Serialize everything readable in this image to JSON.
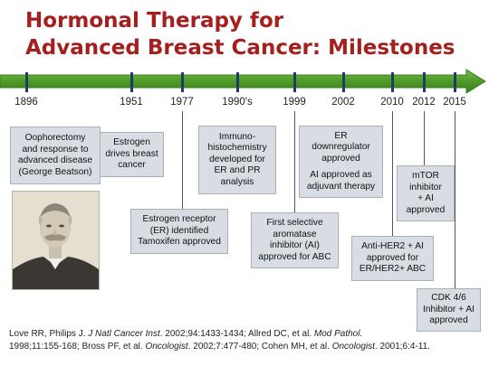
{
  "title": {
    "line1": "Hormonal Therapy for",
    "line2": "Advanced Breast Cancer: Milestones"
  },
  "years": [
    "1896",
    "1951",
    "1977",
    "1990's",
    "1999",
    "2002",
    "2010",
    "2012",
    "2015"
  ],
  "events": {
    "y1896": {
      "lines": [
        "Oophorectomy",
        "and response to",
        "advanced disease",
        "(George Beatson)"
      ]
    },
    "y1951": {
      "lines": [
        "Estrogen",
        "drives breast",
        "cancer"
      ]
    },
    "y1977": {
      "lines": [
        "Estrogen receptor",
        "(ER) identified",
        "Tamoxifen approved"
      ]
    },
    "y1990s": {
      "lines": [
        "Immuno-",
        "histochemistry",
        "developed for",
        "ER and PR",
        "analysis"
      ]
    },
    "y1999": {
      "lines": [
        "First selective",
        "aromatase",
        "inhibitor (AI)",
        "approved for ABC"
      ]
    },
    "y2002": {
      "lines": [
        "ER",
        "downregulator",
        "approved"
      ],
      "lines2": [
        "AI approved as",
        "adjuvant therapy"
      ]
    },
    "y2010": {
      "lines": [
        "Anti-HER2 + AI",
        "approved for",
        "ER/HER2+ ABC"
      ]
    },
    "y2012": {
      "lines": [
        "mTOR",
        "inhibitor",
        "+ AI",
        "approved"
      ]
    },
    "y2015": {
      "lines": [
        "CDK 4/6",
        "Inhibitor + AI",
        "approved"
      ]
    }
  },
  "references": {
    "r1a": "Love RR, Philips J. ",
    "r1b": "J Natl Cancer Inst",
    "r1c": ". 2002;94:1433-1434; Allred DC, et al. ",
    "r1d": "Mod Pathol.",
    "r2a": "1998;11:155-168; Bross PF, et al. ",
    "r2b": "Oncologist",
    "r2c": ". 2002;7:477-480; Cohen MH, et al. ",
    "r2d": "Oncologist",
    "r2e": ". 2001;6:4-11."
  },
  "colors": {
    "title": "#a3201f",
    "timeline_green": "#4e9a2a",
    "tick_navy": "#1f3c64",
    "box_fill": "#d8dde3"
  }
}
